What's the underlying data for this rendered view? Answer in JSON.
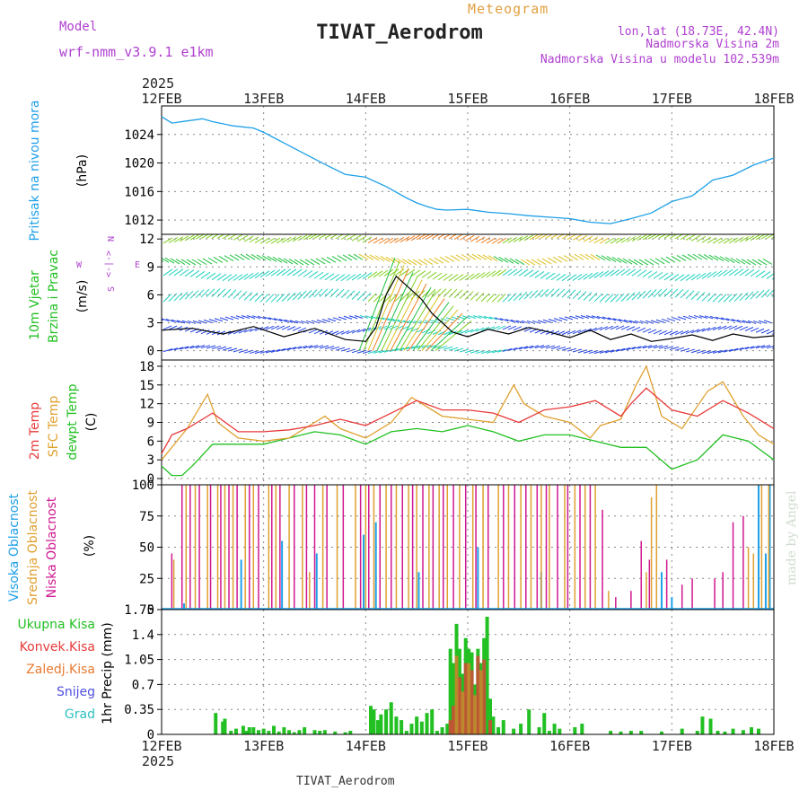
{
  "header": {
    "model_label": "Model",
    "model_name": "wrf-nmm_v3.9.1  e1km",
    "product": "Meteogram",
    "station": "TIVAT_Aerodrom",
    "lonlat": "lon,lat (18.73E, 42.4N)",
    "elev": "Nadmorska Visina 2m",
    "elev_model": "Nadmorska Visina u modelu 102.539m",
    "footer_station": "TIVAT_Aerodrom",
    "credit": "made by Angel",
    "year": "2025",
    "days": [
      "12FEB",
      "13FEB",
      "14FEB",
      "15FEB",
      "16FEB",
      "17FEB",
      "18FEB"
    ]
  },
  "colors": {
    "pressure": "#1ea0e8",
    "t2m": "#e83a3a",
    "sfc": "#e0a030",
    "dewpt": "#22c022",
    "high_cloud": "#1ea0e8",
    "mid_cloud": "#e0a030",
    "low_cloud": "#d01890",
    "precip_total": "#22c022",
    "precip_conv": "#e83a3a",
    "precip_frozen": "#e87a30",
    "precip_snow": "#5050e0",
    "precip_hail": "#30c0c0",
    "label_violet": "#b040d0",
    "title_orange": "#e0a040"
  },
  "chart_data": [
    {
      "type": "line",
      "panel": "pressure",
      "ylabel_name": "Pritisak na nivou mora",
      "ylabel_unit": "(hPa)",
      "ylim": [
        1010,
        1028
      ],
      "yticks": [
        1012,
        1016,
        1020,
        1024
      ],
      "xlim": [
        0,
        6
      ],
      "grid": true,
      "series": [
        {
          "name": "Pritisak na nivou mora",
          "x": [
            0,
            0.1,
            0.25,
            0.4,
            0.5,
            0.7,
            0.9,
            1.0,
            1.2,
            1.4,
            1.6,
            1.8,
            2.0,
            2.2,
            2.4,
            2.5,
            2.6,
            2.7,
            2.8,
            3.0,
            3.2,
            3.4,
            3.6,
            3.8,
            4.0,
            4.2,
            4.4,
            4.6,
            4.8,
            5.0,
            5.2,
            5.4,
            5.6,
            5.8,
            6.0
          ],
          "values": [
            1026.5,
            1025.6,
            1025.9,
            1026.2,
            1025.8,
            1025.2,
            1024.9,
            1024.3,
            1022.8,
            1021.3,
            1019.8,
            1018.4,
            1018.0,
            1016.7,
            1015.1,
            1014.4,
            1013.9,
            1013.5,
            1013.4,
            1013.5,
            1013.1,
            1012.9,
            1012.6,
            1012.4,
            1012.2,
            1011.7,
            1011.5,
            1012.2,
            1013.0,
            1014.6,
            1015.4,
            1017.6,
            1018.3,
            1019.7,
            1020.7
          ]
        }
      ]
    },
    {
      "type": "line",
      "panel": "wind",
      "ylabel_name": "10m Vjetar",
      "ylabel_sub": "Brzina i Pravac",
      "ylabel_unit": "(m/s)",
      "compass": {
        "n": "N",
        "s": "S",
        "e": "E",
        "w": "W",
        "top": "N",
        "bottom": "S",
        "mark": "<-|->"
      },
      "ylim": [
        -1,
        12.5
      ],
      "yticks": [
        0,
        3,
        6,
        9,
        12
      ],
      "xlim": [
        0,
        6
      ],
      "grid": true,
      "series": [
        {
          "name": "speed",
          "x": [
            0,
            0.3,
            0.6,
            0.9,
            1.2,
            1.5,
            1.8,
            2.0,
            2.1,
            2.2,
            2.3,
            2.35,
            2.45,
            2.55,
            2.65,
            2.75,
            2.85,
            3.0,
            3.2,
            3.4,
            3.6,
            3.8,
            4.0,
            4.2,
            4.4,
            4.6,
            4.8,
            5.0,
            5.2,
            5.4,
            5.6,
            5.8,
            6.0
          ],
          "values": [
            2.2,
            2.4,
            1.8,
            2.6,
            1.5,
            2.4,
            1.2,
            1.0,
            2.5,
            6.0,
            8.0,
            7.5,
            6.5,
            5.5,
            4.0,
            3.0,
            2.0,
            1.5,
            2.3,
            1.8,
            2.5,
            2.0,
            1.4,
            2.2,
            1.2,
            1.8,
            1.0,
            1.3,
            1.7,
            1.1,
            1.8,
            1.4,
            1.6
          ]
        }
      ]
    },
    {
      "type": "line",
      "panel": "temperature",
      "ylabel_lines": [
        "2m Temp",
        "SFC Temp",
        "dewpt Temp"
      ],
      "ylabel_unit": "(C)",
      "ylim": [
        -1,
        19
      ],
      "yticks": [
        0,
        3,
        6,
        9,
        12,
        15,
        18
      ],
      "xlim": [
        0,
        6
      ],
      "grid": true,
      "series": [
        {
          "name": "2m Temp",
          "x": [
            0,
            0.1,
            0.25,
            0.5,
            0.75,
            1.0,
            1.25,
            1.5,
            1.75,
            2.0,
            2.25,
            2.5,
            2.75,
            3.0,
            3.25,
            3.5,
            3.75,
            4.0,
            4.25,
            4.5,
            4.6,
            4.75,
            5.0,
            5.25,
            5.5,
            5.75,
            6.0
          ],
          "values": [
            4,
            7,
            8,
            10.5,
            7.5,
            7.5,
            7.8,
            8.5,
            9.5,
            8.5,
            10.5,
            12.5,
            11,
            11,
            10.5,
            9,
            11,
            11.5,
            12.5,
            10,
            12,
            14.5,
            11,
            10,
            12.5,
            10.5,
            8
          ]
        },
        {
          "name": "SFC Temp",
          "x": [
            0,
            0.1,
            0.25,
            0.45,
            0.55,
            0.75,
            1.0,
            1.25,
            1.5,
            1.6,
            1.75,
            2.0,
            2.25,
            2.45,
            2.55,
            2.75,
            3.0,
            3.25,
            3.45,
            3.55,
            3.75,
            4.0,
            4.2,
            4.3,
            4.5,
            4.65,
            4.75,
            4.9,
            5.1,
            5.35,
            5.5,
            5.7,
            5.85,
            6.0
          ],
          "values": [
            3,
            5,
            8,
            13.5,
            9,
            6.5,
            6,
            6.5,
            9,
            10,
            8,
            6.5,
            9,
            13,
            12,
            10,
            9.5,
            9,
            15,
            12,
            10,
            9,
            6.5,
            8.5,
            9.5,
            15,
            18,
            10,
            8,
            14,
            15.5,
            10,
            7,
            5.5
          ]
        },
        {
          "name": "dewpt Temp",
          "x": [
            0,
            0.1,
            0.2,
            0.3,
            0.5,
            0.75,
            1.0,
            1.25,
            1.5,
            1.75,
            2.0,
            2.25,
            2.5,
            2.75,
            3.0,
            3.25,
            3.5,
            3.75,
            4.0,
            4.25,
            4.5,
            4.75,
            5.0,
            5.25,
            5.5,
            5.75,
            6.0
          ],
          "values": [
            2,
            0.5,
            0.5,
            2,
            5.5,
            5.5,
            5.5,
            6.5,
            7.5,
            7,
            5.5,
            7.5,
            8,
            7.5,
            8.5,
            7.5,
            6,
            7,
            7,
            6,
            5,
            5,
            1.5,
            3,
            7,
            6,
            3
          ]
        }
      ]
    },
    {
      "type": "bar",
      "panel": "cloud",
      "ylabel_lines": [
        "Visoka Oblacnost",
        "Srednja Oblacnost",
        "Niska Oblacnost"
      ],
      "ylabel_unit": "(%)",
      "ylim": [
        0,
        100
      ],
      "yticks": [
        0,
        25,
        50,
        75,
        100
      ],
      "xlim": [
        0,
        6
      ],
      "grid": true,
      "series": [
        {
          "name": "Visoka Oblacnost",
          "x": [
            0.22,
            0.78,
            1.18,
            1.52,
            1.98,
            2.1,
            2.52,
            3.1,
            3.72,
            4.9,
            5.0,
            5.85,
            5.92,
            5.96
          ],
          "values": [
            5,
            40,
            55,
            45,
            60,
            70,
            30,
            50,
            30,
            30,
            10,
            100,
            45,
            100
          ]
        },
        {
          "name": "Srednja Oblacnost",
          "x": [
            0.12,
            0.24,
            0.33,
            0.45,
            0.55,
            0.62,
            0.7,
            0.82,
            0.9,
            1.05,
            1.12,
            1.25,
            1.38,
            1.45,
            1.58,
            1.72,
            1.9,
            2.0,
            2.08,
            2.2,
            2.3,
            2.42,
            2.5,
            2.62,
            2.72,
            2.8,
            2.92,
            3.05,
            3.15,
            3.3,
            3.4,
            3.52,
            3.62,
            3.72,
            3.8,
            3.95,
            4.05,
            4.15,
            4.25,
            4.38,
            4.75,
            4.8,
            4.85,
            5.75,
            5.8,
            5.88,
            5.95
          ],
          "values": [
            40,
            100,
            100,
            100,
            100,
            100,
            100,
            100,
            100,
            100,
            100,
            100,
            100,
            30,
            100,
            100,
            100,
            100,
            100,
            100,
            100,
            100,
            100,
            100,
            100,
            100,
            100,
            100,
            100,
            100,
            100,
            100,
            100,
            100,
            100,
            100,
            100,
            100,
            100,
            15,
            30,
            90,
            100,
            50,
            45,
            100,
            100
          ]
        },
        {
          "name": "Niska Oblacnost",
          "x": [
            0.1,
            0.2,
            0.28,
            0.37,
            0.48,
            0.58,
            0.66,
            0.74,
            0.86,
            0.95,
            1.08,
            1.16,
            1.3,
            1.42,
            1.5,
            1.62,
            1.78,
            1.95,
            2.03,
            2.14,
            2.25,
            2.36,
            2.46,
            2.56,
            2.66,
            2.76,
            2.86,
            2.98,
            3.08,
            3.2,
            3.35,
            3.46,
            3.57,
            3.68,
            3.77,
            3.88,
            3.98,
            4.1,
            4.2,
            4.32,
            4.45,
            4.6,
            4.7,
            4.78,
            4.95,
            5.1,
            5.2,
            5.42,
            5.5,
            5.6,
            5.7
          ],
          "values": [
            45,
            100,
            100,
            100,
            100,
            100,
            100,
            100,
            100,
            100,
            100,
            100,
            100,
            100,
            100,
            100,
            100,
            100,
            100,
            100,
            100,
            100,
            100,
            100,
            100,
            100,
            100,
            100,
            100,
            100,
            100,
            100,
            100,
            100,
            100,
            100,
            100,
            100,
            100,
            80,
            10,
            15,
            55,
            40,
            40,
            20,
            25,
            25,
            30,
            70,
            75
          ]
        }
      ]
    },
    {
      "type": "bar",
      "panel": "precip",
      "ylabel_unit": "1hr Precip (mm)",
      "legend": [
        "Ukupna Kisa",
        "Konvek.Kisa",
        "Zaledj.Kisa",
        "Snijeg",
        "Grad"
      ],
      "ylim": [
        0,
        1.75
      ],
      "yticks": [
        0,
        0.35,
        0.7,
        1.05,
        1.4,
        1.75
      ],
      "ytick_labels": [
        "0",
        "0.35",
        "0.7",
        "1.05",
        "1.4",
        "1.75"
      ],
      "xlim": [
        0,
        6
      ],
      "grid": true,
      "series": [
        {
          "name": "Ukupna Kisa",
          "x": [
            0.53,
            0.6,
            0.62,
            0.68,
            0.73,
            0.8,
            0.83,
            0.86,
            0.9,
            0.95,
            1.0,
            1.05,
            1.1,
            1.15,
            1.2,
            1.25,
            1.3,
            1.35,
            1.4,
            1.5,
            1.55,
            1.6,
            1.7,
            1.8,
            1.85,
            2.05,
            2.08,
            2.12,
            2.15,
            2.2,
            2.25,
            2.3,
            2.35,
            2.4,
            2.45,
            2.5,
            2.55,
            2.6,
            2.65,
            2.7,
            2.75,
            2.8,
            2.83,
            2.86,
            2.89,
            2.92,
            2.95,
            2.98,
            3.01,
            3.04,
            3.07,
            3.1,
            3.13,
            3.16,
            3.19,
            3.22,
            3.25,
            3.3,
            3.35,
            3.45,
            3.52,
            3.6,
            3.7,
            3.75,
            3.8,
            3.85,
            3.9,
            4.05,
            4.12,
            4.4,
            4.5,
            4.6,
            4.7,
            4.9,
            5.1,
            5.25,
            5.3,
            5.38,
            5.45,
            5.52,
            5.6,
            5.7,
            5.78,
            5.85
          ],
          "values": [
            0.3,
            0.18,
            0.22,
            0.05,
            0.08,
            0.12,
            0.05,
            0.1,
            0.1,
            0.06,
            0.08,
            0.05,
            0.12,
            0.04,
            0.1,
            0.06,
            0.03,
            0.06,
            0.1,
            0.06,
            0.05,
            0.06,
            0.04,
            0.03,
            0.05,
            0.4,
            0.35,
            0.2,
            0.28,
            0.35,
            0.45,
            0.25,
            0.2,
            0.05,
            0.15,
            0.25,
            0.18,
            0.3,
            0.35,
            0.05,
            0.1,
            0.15,
            1.2,
            1.0,
            1.55,
            1.2,
            0.85,
            1.35,
            1.2,
            1.15,
            0.7,
            1.2,
            1.0,
            1.35,
            1.65,
            0.5,
            0.25,
            0.1,
            0.2,
            0.08,
            0.15,
            0.35,
            0.1,
            0.3,
            0.05,
            0.15,
            0.08,
            0.1,
            0.15,
            0.05,
            0.04,
            0.05,
            0.05,
            0.04,
            0.08,
            0.05,
            0.25,
            0.22,
            0.05,
            0.04,
            0.08,
            0.06,
            0.1,
            0.08
          ]
        },
        {
          "name": "Konvek.Kisa",
          "x": [
            2.83,
            2.86,
            2.92,
            2.98,
            3.04,
            3.1,
            3.16,
            3.22
          ],
          "values": [
            0.2,
            0.4,
            0.8,
            1.0,
            0.9,
            1.1,
            1.05,
            0.2
          ]
        },
        {
          "name": "Zaledj.Kisa",
          "x": [
            2.89,
            2.95,
            3.01,
            3.07,
            3.13
          ],
          "values": [
            1.1,
            0.6,
            1.0,
            0.55,
            0.9
          ]
        }
      ]
    }
  ]
}
